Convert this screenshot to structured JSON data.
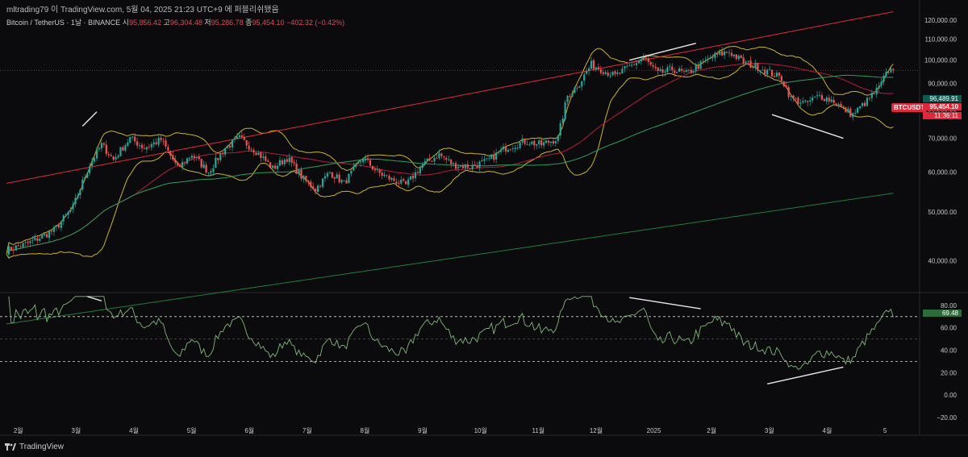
{
  "header": {
    "caption": "mltrading79 이 TradingView.com, 5월 04, 2025 21:23 UTC+9 에 퍼블리쉬됐음"
  },
  "legend": {
    "symbol": "Bitcoin / TetherUS · 1날 · BINANCE",
    "open_label": "시",
    "open": "95,856.42",
    "high_label": "고",
    "high": "96,304.48",
    "low_label": "저",
    "low": "95,286.78",
    "close_label": "종",
    "close": "95,454.10",
    "change": "−402.32 (−0.42%)"
  },
  "brand": {
    "name": "TradingView"
  },
  "colors": {
    "background": "#0b0b0d",
    "up": "#26a69a",
    "down": "#ef5350",
    "bollinger": "#c9b32a",
    "ma_red": "#b71c3a",
    "ma_green": "#2e9e5b",
    "ma_long_red": "#e0283b",
    "ma_long_green": "#1e7d3a",
    "rsi": "#7fb77a",
    "divergence": "#e6e6e6"
  },
  "price_tags": {
    "ticker": "BTCUSDT",
    "last": "95,454.10",
    "countdown": "11:36:11",
    "upper": "96,489.91",
    "rsi_last": "69.48"
  },
  "chart_data": [
    {
      "type": "candlestick",
      "title": "",
      "x_ticks": [
        "2월",
        "3월",
        "4월",
        "5월",
        "6월",
        "7월",
        "8월",
        "9월",
        "10월",
        "11월",
        "12월",
        "2025",
        "2월",
        "3월",
        "4월",
        "5"
      ],
      "y_ticks": [
        40000,
        50000,
        60000,
        70000,
        80000,
        90000,
        100000,
        110000,
        120000
      ],
      "y_tick_labels": [
        "40,000.00",
        "50,000.00",
        "60,000.00",
        "70,000.00",
        "80,000.00",
        "90,000.00",
        "100,000.00",
        "110,000.00",
        "120,000.00"
      ],
      "ylim": [
        35000,
        125000
      ],
      "close_path": [
        [
          0,
          42000
        ],
        [
          10,
          43500
        ],
        [
          20,
          46000
        ],
        [
          28,
          51000
        ],
        [
          35,
          62000
        ],
        [
          40,
          68000
        ],
        [
          45,
          63500
        ],
        [
          52,
          70000
        ],
        [
          58,
          67000
        ],
        [
          65,
          69500
        ],
        [
          72,
          61000
        ],
        [
          78,
          65000
        ],
        [
          85,
          60000
        ],
        [
          92,
          67000
        ],
        [
          98,
          70000
        ],
        [
          105,
          66000
        ],
        [
          112,
          61000
        ],
        [
          118,
          64000
        ],
        [
          125,
          58000
        ],
        [
          130,
          55500
        ],
        [
          136,
          60000
        ],
        [
          142,
          57000
        ],
        [
          150,
          64000
        ],
        [
          156,
          60000
        ],
        [
          162,
          58000
        ],
        [
          168,
          56500
        ],
        [
          175,
          62000
        ],
        [
          182,
          65000
        ],
        [
          188,
          62000
        ],
        [
          195,
          61500
        ],
        [
          202,
          63000
        ],
        [
          210,
          67000
        ],
        [
          218,
          69000
        ],
        [
          225,
          68000
        ],
        [
          232,
          70000
        ],
        [
          236,
          85000
        ],
        [
          241,
          90000
        ],
        [
          246,
          98000
        ],
        [
          250,
          96000
        ],
        [
          256,
          93000
        ],
        [
          262,
          97000
        ],
        [
          268,
          101000
        ],
        [
          274,
          94000
        ],
        [
          280,
          96000
        ],
        [
          286,
          94000
        ],
        [
          292,
          98000
        ],
        [
          298,
          102000
        ],
        [
          304,
          104000
        ],
        [
          310,
          99000
        ],
        [
          316,
          97000
        ],
        [
          320,
          95000
        ],
        [
          326,
          92000
        ],
        [
          330,
          84000
        ],
        [
          336,
          82000
        ],
        [
          342,
          85000
        ],
        [
          348,
          83000
        ],
        [
          352,
          80000
        ],
        [
          356,
          78000
        ],
        [
          362,
          83000
        ],
        [
          367,
          88000
        ],
        [
          371,
          95500
        ],
        [
          373,
          95454
        ]
      ],
      "series": [
        {
          "name": "",
          "role": "bollinger-upper"
        },
        {
          "name": "",
          "role": "bollinger-lower"
        },
        {
          "name": "",
          "role": "moving-average-mid"
        },
        {
          "name": "",
          "role": "moving-average-long"
        },
        {
          "name": "",
          "role": "moving-average-200w"
        }
      ]
    },
    {
      "type": "line",
      "title": "",
      "y_ticks": [
        -20,
        0,
        20,
        40,
        60,
        80
      ],
      "y_tick_labels": [
        "−20.00",
        "0.00",
        "20.00",
        "40.00",
        "60.00",
        "80.00"
      ],
      "ylim": [
        -25,
        90
      ],
      "levels": [
        70,
        50,
        30
      ],
      "last": 69.48,
      "divergence_lines": [
        {
          "panel": "price",
          "from": [
            262,
            100000
          ],
          "to": [
            290,
            108000
          ]
        },
        {
          "panel": "price",
          "from": [
            322,
            78000
          ],
          "to": [
            352,
            70000
          ]
        },
        {
          "panel": "price",
          "from": [
            32,
            74000
          ],
          "to": [
            38,
            79000
          ]
        },
        {
          "panel": "rsi",
          "from": [
            262,
            87
          ],
          "to": [
            292,
            77
          ]
        },
        {
          "panel": "rsi",
          "from": [
            320,
            10
          ],
          "to": [
            352,
            25
          ]
        },
        {
          "panel": "rsi",
          "from": [
            34,
            88
          ],
          "to": [
            40,
            84
          ]
        }
      ]
    }
  ]
}
